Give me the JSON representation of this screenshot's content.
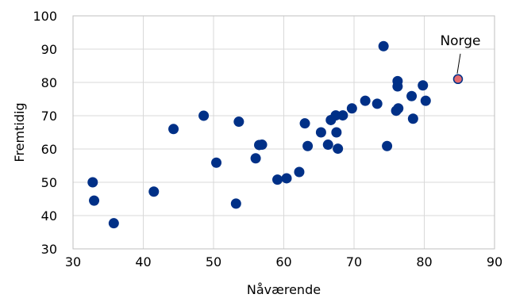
{
  "chart_data": {
    "type": "scatter",
    "title": "",
    "xlabel": "Nåværende",
    "ylabel": "Fremtidig",
    "xlim": [
      30,
      90
    ],
    "ylim": [
      30,
      100
    ],
    "x_ticks": [
      "30",
      "40",
      "50",
      "60",
      "70",
      "80",
      "90"
    ],
    "y_ticks": [
      "30",
      "40",
      "50",
      "60",
      "70",
      "80",
      "90",
      "100"
    ],
    "grid": true,
    "legend": "none",
    "colors": {
      "points": "#003087",
      "highlight": "#e56b6f",
      "grid": "#d9d9d9"
    },
    "series": [
      {
        "points": [
          [
            32.8,
            50.0
          ],
          [
            33.0,
            44.5
          ],
          [
            35.8,
            37.7
          ],
          [
            41.5,
            47.2
          ],
          [
            44.3,
            66.0
          ],
          [
            48.6,
            70.0
          ],
          [
            50.4,
            55.9
          ],
          [
            53.2,
            43.6
          ],
          [
            53.6,
            68.2
          ],
          [
            56.0,
            57.2
          ],
          [
            56.5,
            61.2
          ],
          [
            56.9,
            61.3
          ],
          [
            59.1,
            50.8
          ],
          [
            60.4,
            51.2
          ],
          [
            62.2,
            53.1
          ],
          [
            63.0,
            67.7
          ],
          [
            63.4,
            60.9
          ],
          [
            65.3,
            65.0
          ],
          [
            66.3,
            61.3
          ],
          [
            66.7,
            68.7
          ],
          [
            67.4,
            70.1
          ],
          [
            67.5,
            65.0
          ],
          [
            67.7,
            60.1
          ],
          [
            68.4,
            70.1
          ],
          [
            69.7,
            72.2
          ],
          [
            71.6,
            74.5
          ],
          [
            73.3,
            73.6
          ],
          [
            74.2,
            90.9
          ],
          [
            74.7,
            60.9
          ],
          [
            76.0,
            71.5
          ],
          [
            76.2,
            80.4
          ],
          [
            76.2,
            78.8
          ],
          [
            76.3,
            72.2
          ],
          [
            78.2,
            75.9
          ],
          [
            78.4,
            69.1
          ],
          [
            79.8,
            79.1
          ],
          [
            80.2,
            74.5
          ]
        ]
      },
      {
        "points": [
          [
            84.8,
            81.0
          ]
        ]
      }
    ],
    "annotations": [
      {
        "text": "Norge",
        "x": 84.8,
        "y": 81.0
      }
    ]
  }
}
